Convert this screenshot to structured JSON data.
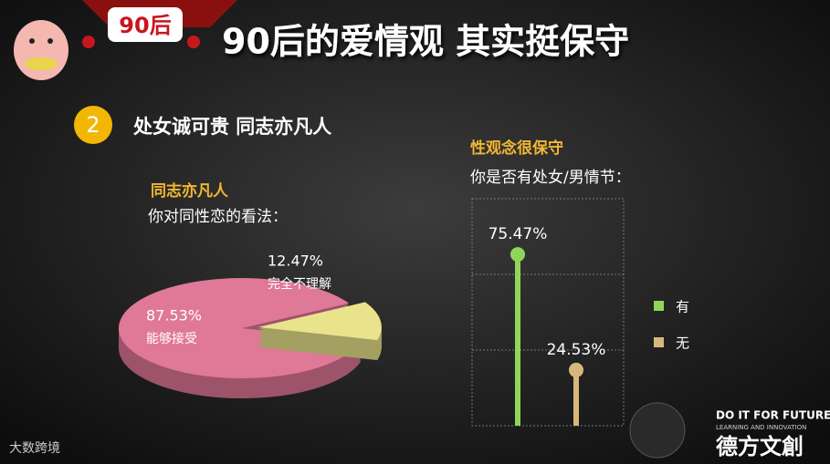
{
  "header": {
    "badge": "90后",
    "title": "90后的爱情观 其实挺保守"
  },
  "section": {
    "number": "2",
    "title": "处女诚可贵  同志亦凡人"
  },
  "chart_data": [
    {
      "type": "pie",
      "title": "同志亦凡人",
      "subtitle": "你对同性恋的看法：",
      "categories": [
        "能够接受",
        "完全不理解"
      ],
      "values": [
        87.53,
        12.47
      ],
      "value_labels": [
        "87.53%",
        "12.47%"
      ],
      "colors": [
        "#e07898",
        "#e9e48c"
      ]
    },
    {
      "type": "lollipop",
      "title": "性观念很保守",
      "subtitle": "你是否有处女/男情节：",
      "series": [
        {
          "name": "有",
          "color": "#8fd55b",
          "values": [
            75.47
          ],
          "value_labels": [
            "75.47%"
          ]
        },
        {
          "name": "无",
          "color": "#d8b87a",
          "values": [
            24.53
          ],
          "value_labels": [
            "24.53%"
          ]
        }
      ],
      "ylim": [
        0,
        100
      ]
    }
  ],
  "footer": {
    "left_logo": "大数跨境",
    "slogan": "DO IT FOR FUTURE",
    "slogan_sub": "LEARNING AND INNOVATION",
    "brand": "德方文創"
  }
}
